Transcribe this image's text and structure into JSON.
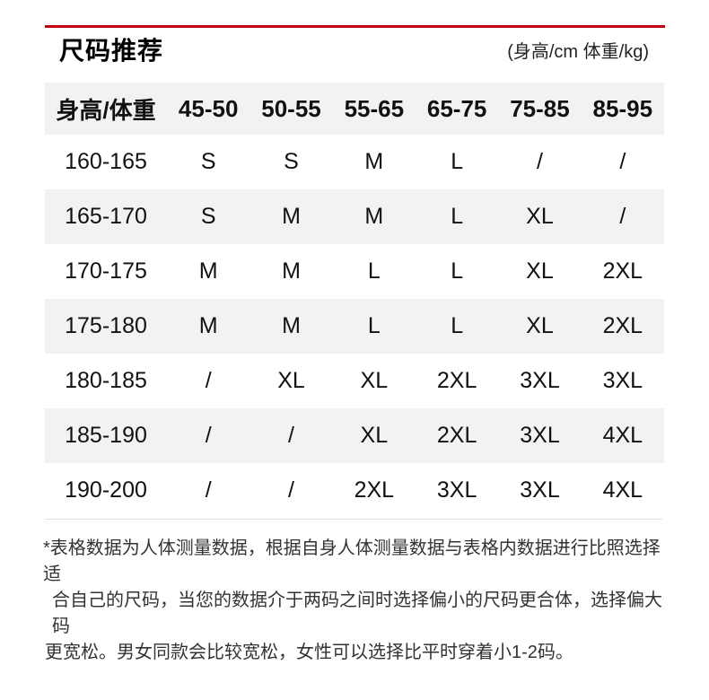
{
  "page": {
    "title": "尺码推荐",
    "unit_note": "(身高/cm 体重/kg)",
    "accent_color": "#c40010",
    "stripe_color": "#f2f2f3"
  },
  "size_table": {
    "header": [
      "身高/体重",
      "45-50",
      "50-55",
      "55-65",
      "65-75",
      "75-85",
      "85-95"
    ],
    "rows": [
      {
        "height": "160-165",
        "sizes": [
          "S",
          "S",
          "M",
          "L",
          "/",
          "/"
        ]
      },
      {
        "height": "165-170",
        "sizes": [
          "S",
          "M",
          "M",
          "L",
          "XL",
          "/"
        ]
      },
      {
        "height": "170-175",
        "sizes": [
          "M",
          "M",
          "L",
          "L",
          "XL",
          "2XL"
        ]
      },
      {
        "height": "175-180",
        "sizes": [
          "M",
          "M",
          "L",
          "L",
          "XL",
          "2XL"
        ]
      },
      {
        "height": "180-185",
        "sizes": [
          "/",
          "XL",
          "XL",
          "2XL",
          "3XL",
          "3XL"
        ]
      },
      {
        "height": "185-190",
        "sizes": [
          "/",
          "/",
          "XL",
          "2XL",
          "3XL",
          "4XL"
        ]
      },
      {
        "height": "190-200",
        "sizes": [
          "/",
          "/",
          "2XL",
          "3XL",
          "3XL",
          "4XL"
        ]
      }
    ]
  },
  "footnote": {
    "lines": [
      "*表格数据为人体测量数据，根据自身人体测量数据与表格内数据进行比照选择适",
      "合自己的尺码，当您的数据介于两码之间时选择偏小的尺码更合体，选择偏大码",
      "更宽松。男女同款会比较宽松，女性可以选择比平时穿着小1-2码。"
    ]
  }
}
